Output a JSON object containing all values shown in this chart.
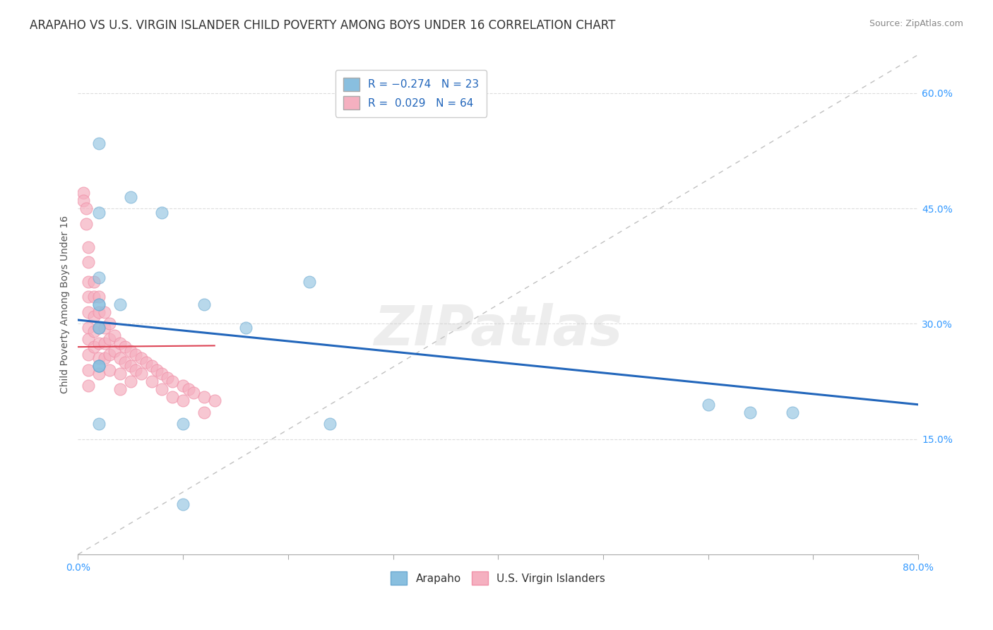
{
  "title": "ARAPAHO VS U.S. VIRGIN ISLANDER CHILD POVERTY AMONG BOYS UNDER 16 CORRELATION CHART",
  "source": "Source: ZipAtlas.com",
  "ylabel": "Child Poverty Among Boys Under 16",
  "xlim": [
    0.0,
    0.8
  ],
  "ylim": [
    0.0,
    0.65
  ],
  "arapaho_x": [
    0.02,
    0.05,
    0.02,
    0.08,
    0.02,
    0.02,
    0.04,
    0.02,
    0.12,
    0.02,
    0.02,
    0.16,
    0.22,
    0.6,
    0.64,
    0.68,
    0.02,
    0.02,
    0.02,
    0.02,
    0.1,
    0.24,
    0.1
  ],
  "arapaho_y": [
    0.535,
    0.465,
    0.445,
    0.445,
    0.36,
    0.325,
    0.325,
    0.325,
    0.325,
    0.295,
    0.295,
    0.295,
    0.355,
    0.195,
    0.185,
    0.185,
    0.245,
    0.245,
    0.245,
    0.17,
    0.17,
    0.17,
    0.065
  ],
  "virgin_x": [
    0.005,
    0.005,
    0.008,
    0.008,
    0.01,
    0.01,
    0.01,
    0.01,
    0.01,
    0.01,
    0.01,
    0.01,
    0.01,
    0.01,
    0.015,
    0.015,
    0.015,
    0.015,
    0.015,
    0.02,
    0.02,
    0.02,
    0.02,
    0.02,
    0.02,
    0.025,
    0.025,
    0.025,
    0.025,
    0.03,
    0.03,
    0.03,
    0.03,
    0.035,
    0.035,
    0.04,
    0.04,
    0.04,
    0.04,
    0.045,
    0.045,
    0.05,
    0.05,
    0.05,
    0.055,
    0.055,
    0.06,
    0.06,
    0.065,
    0.07,
    0.07,
    0.075,
    0.08,
    0.08,
    0.085,
    0.09,
    0.09,
    0.1,
    0.1,
    0.105,
    0.11,
    0.12,
    0.12,
    0.13
  ],
  "virgin_y": [
    0.47,
    0.46,
    0.45,
    0.43,
    0.4,
    0.38,
    0.355,
    0.335,
    0.315,
    0.295,
    0.28,
    0.26,
    0.24,
    0.22,
    0.355,
    0.335,
    0.31,
    0.29,
    0.27,
    0.335,
    0.315,
    0.295,
    0.275,
    0.255,
    0.235,
    0.315,
    0.295,
    0.275,
    0.255,
    0.3,
    0.28,
    0.26,
    0.24,
    0.285,
    0.265,
    0.275,
    0.255,
    0.235,
    0.215,
    0.27,
    0.25,
    0.265,
    0.245,
    0.225,
    0.26,
    0.24,
    0.255,
    0.235,
    0.25,
    0.245,
    0.225,
    0.24,
    0.235,
    0.215,
    0.23,
    0.225,
    0.205,
    0.22,
    0.2,
    0.215,
    0.21,
    0.205,
    0.185,
    0.2
  ],
  "arapaho_color": "#89bfdf",
  "virgin_color": "#f5b0c0",
  "arapaho_edge_color": "#6aa8d0",
  "virgin_edge_color": "#f090a8",
  "arapaho_line_color": "#2266bb",
  "virgin_line_color": "#dd4455",
  "arapaho_line_start_y": 0.305,
  "arapaho_line_end_y": 0.195,
  "virgin_line_start_y": 0.27,
  "virgin_line_end_y": 0.28,
  "ref_line_color": "#c0c0c0",
  "background_color": "#ffffff",
  "watermark": "ZIPatlas",
  "title_fontsize": 12,
  "axis_label_fontsize": 10,
  "tick_fontsize": 10,
  "ytick_color": "#3399ff",
  "xtick_color": "#3399ff"
}
